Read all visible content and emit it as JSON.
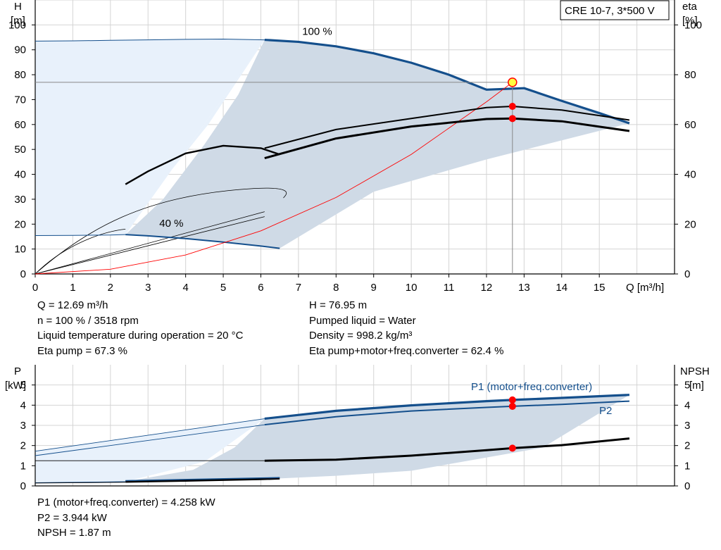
{
  "title": "CRE 10-7, 3*500 V",
  "colors": {
    "blue": "#144f8c",
    "light_area": "#e8f1fb",
    "shade": "#cfdae6",
    "grid": "#d4d4d4",
    "red": "#ff0000",
    "yellow": "#ffff40"
  },
  "top_info": {
    "left": [
      "Q = 12.69 m³/h",
      "n = 100 % / 3518 rpm",
      "Liquid temperature during operation = 20 °C",
      "Eta pump = 67.3 %"
    ],
    "right": [
      "H = 76.95 m",
      "Pumped liquid = Water",
      "Density = 998.2 kg/m³",
      "Eta pump+motor+freq.converter = 62.4 %"
    ]
  },
  "bottom_info": [
    "P1 (motor+freq.converter) = 4.258 kW",
    "P2 = 3.944 kW",
    "NPSH = 1.87 m"
  ],
  "chart_data": [
    {
      "type": "line",
      "name": "head-efficiency",
      "xlabel": "Q [m³/h]",
      "ylabel": "H\n[m]",
      "y2label": "eta\n[%]",
      "xlim": [
        0,
        17
      ],
      "ylim": [
        0,
        110
      ],
      "y2lim": [
        0,
        110
      ],
      "xticks": [
        0,
        1,
        2,
        3,
        4,
        5,
        6,
        7,
        8,
        9,
        10,
        11,
        12,
        13,
        14,
        15
      ],
      "yticks": [
        0,
        10,
        20,
        30,
        40,
        50,
        60,
        70,
        80,
        90,
        100
      ],
      "y2ticks": [
        0,
        20,
        40,
        60,
        80,
        100
      ],
      "grid": true,
      "annotations": [
        {
          "text": "100 %",
          "x": 7.1,
          "y": 96
        },
        {
          "text": "40 %",
          "x": 3.3,
          "y": 19
        }
      ],
      "duty_point": {
        "Q": 12.69,
        "H": 76.95
      },
      "series": [
        {
          "role": "head_100",
          "x": [
            6.1,
            7,
            8,
            9,
            10,
            11,
            12,
            12.69,
            13,
            14,
            15,
            15.8
          ],
          "y": [
            94,
            93.2,
            91.4,
            88.6,
            84.8,
            80,
            74,
            76.95,
            74.6,
            69.5,
            64.6,
            60.5
          ]
        },
        {
          "role": "head_100_low_range",
          "x": [
            0,
            1,
            2,
            3,
            4,
            5,
            6.1
          ],
          "y": [
            93.5,
            93.6,
            93.8,
            94,
            94.2,
            94.3,
            94
          ]
        },
        {
          "role": "head_40",
          "x": [
            2.4,
            3,
            4,
            5,
            6,
            6.5
          ],
          "y": [
            15.8,
            15.3,
            14.2,
            12.8,
            11.2,
            10.3
          ]
        },
        {
          "role": "head_40_low_range",
          "x": [
            0,
            1,
            2,
            2.4
          ],
          "y": [
            15.4,
            15.5,
            15.6,
            15.8
          ]
        },
        {
          "role": "system_curve",
          "x": [
            0,
            2,
            4,
            6,
            8,
            10,
            12,
            12.69
          ],
          "y": [
            0,
            1.9,
            7.6,
            17.3,
            30.7,
            48,
            69.1,
            76.95
          ]
        },
        {
          "role": "eta_pump_100",
          "x": [
            6.1,
            8,
            10,
            12,
            12.69,
            14,
            15.8
          ],
          "y": [
            50.5,
            58,
            62.4,
            66.8,
            67.3,
            65.8,
            61.8
          ]
        },
        {
          "role": "eta_total_100",
          "x": [
            6.1,
            8,
            10,
            12,
            12.69,
            14,
            15.8
          ],
          "y": [
            46.5,
            54.4,
            59.2,
            62.2,
            62.4,
            61.3,
            57.4
          ]
        },
        {
          "role": "eta_40",
          "x": [
            2.4,
            3,
            4,
            5,
            6,
            6.5
          ],
          "y": [
            36,
            41.2,
            48.4,
            51.5,
            50.5,
            48
          ]
        }
      ]
    },
    {
      "type": "line",
      "name": "power-npsh",
      "xlabel": "Q [m³/h]",
      "ylabel": "P\n[kW]",
      "y2label": "NPSH\n[m]",
      "xlim": [
        0,
        17
      ],
      "ylim": [
        0,
        6
      ],
      "y2lim": [
        0,
        6
      ],
      "yticks": [
        0,
        1,
        2,
        3,
        4,
        5
      ],
      "grid": true,
      "series": [
        {
          "name": "P1 (motor+freq.converter)",
          "x": [
            6.1,
            8,
            10,
            12,
            12.69,
            14,
            15.8
          ],
          "y": [
            3.33,
            3.72,
            3.99,
            4.2,
            4.258,
            4.36,
            4.51
          ]
        },
        {
          "name": "P2",
          "x": [
            6.1,
            8,
            10,
            12,
            12.69,
            14,
            15.8
          ],
          "y": [
            3.03,
            3.43,
            3.71,
            3.89,
            3.944,
            4.04,
            4.2
          ]
        },
        {
          "role": "npsh",
          "x": [
            6.1,
            8,
            10,
            12,
            12.69,
            14,
            15.8
          ],
          "y": [
            1.25,
            1.3,
            1.5,
            1.77,
            1.87,
            2.02,
            2.35
          ]
        },
        {
          "role": "p_40",
          "x": [
            2.4,
            4,
            6,
            6.5
          ],
          "y": [
            0.21,
            0.26,
            0.34,
            0.37
          ]
        }
      ]
    }
  ]
}
